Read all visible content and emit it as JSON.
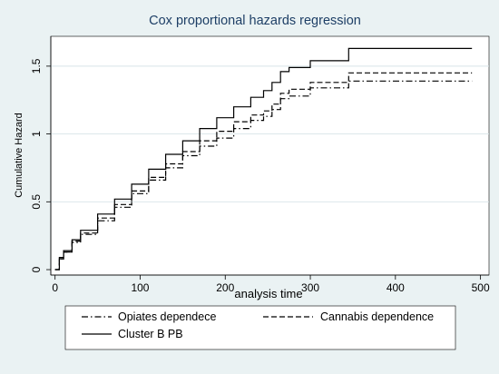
{
  "chart_data": {
    "type": "line",
    "title": "Cox proportional hazards regression",
    "xlabel": "analysis time",
    "ylabel": "Cumulative Hazard",
    "xlim": [
      -5,
      510
    ],
    "ylim": [
      -0.04,
      1.72
    ],
    "xticks": [
      0,
      100,
      200,
      300,
      400,
      500
    ],
    "yticks": [
      0,
      0.5,
      1,
      1.5
    ],
    "xtick_labels": [
      "0",
      "100",
      "200",
      "300",
      "400",
      "500"
    ],
    "ytick_labels": [
      "0",
      "0.5",
      "1",
      "1.5"
    ],
    "grid": "horizontal",
    "legend_position": "bottom",
    "series": [
      {
        "name": "Opiates dependece",
        "style": "dash-dot",
        "x": [
          0,
          5,
          10,
          20,
          30,
          50,
          70,
          90,
          110,
          130,
          150,
          170,
          190,
          210,
          230,
          245,
          255,
          265,
          275,
          300,
          345,
          490
        ],
        "y": [
          0,
          0.08,
          0.13,
          0.2,
          0.26,
          0.36,
          0.46,
          0.56,
          0.66,
          0.75,
          0.84,
          0.91,
          0.97,
          1.04,
          1.1,
          1.13,
          1.18,
          1.26,
          1.28,
          1.34,
          1.39,
          1.39
        ]
      },
      {
        "name": "Cannabis dependence",
        "style": "dashed",
        "x": [
          0,
          5,
          10,
          20,
          30,
          50,
          70,
          90,
          110,
          130,
          150,
          170,
          190,
          210,
          230,
          245,
          255,
          265,
          275,
          300,
          345,
          490
        ],
        "y": [
          0,
          0.08,
          0.13,
          0.21,
          0.27,
          0.38,
          0.48,
          0.58,
          0.68,
          0.78,
          0.87,
          0.95,
          1.02,
          1.09,
          1.14,
          1.17,
          1.22,
          1.3,
          1.33,
          1.38,
          1.45,
          1.45
        ]
      },
      {
        "name": "Cluster B PB",
        "style": "solid",
        "x": [
          0,
          5,
          10,
          20,
          30,
          50,
          70,
          90,
          110,
          130,
          150,
          170,
          190,
          210,
          230,
          245,
          255,
          265,
          275,
          300,
          345,
          490
        ],
        "y": [
          0,
          0.09,
          0.14,
          0.22,
          0.29,
          0.41,
          0.52,
          0.63,
          0.74,
          0.85,
          0.95,
          1.04,
          1.12,
          1.2,
          1.27,
          1.32,
          1.38,
          1.46,
          1.49,
          1.54,
          1.63,
          1.63
        ]
      }
    ]
  }
}
